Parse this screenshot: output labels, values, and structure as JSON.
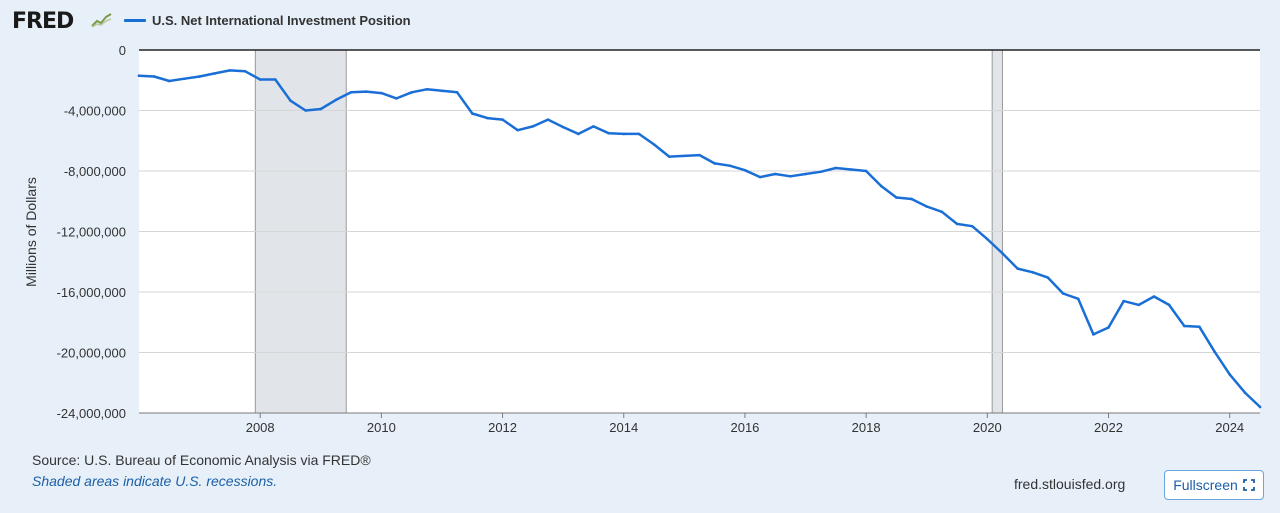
{
  "header": {
    "logo_text": "FRED",
    "logo_icon": "trend-graph-icon"
  },
  "colors": {
    "line": "#1a6fd6",
    "recession_shade": "#e1e5ea",
    "grid": "#d6d6d6",
    "background": "#e7f0f9",
    "link": "#1b5fa8"
  },
  "chart_data": {
    "type": "line",
    "title": "U.S. Net International Investment Position",
    "ylabel": "Millions of Dollars",
    "xlabel": "",
    "xlim": [
      2006.0,
      2024.5
    ],
    "ylim": [
      -24000000,
      0
    ],
    "yticks": [
      0,
      -4000000,
      -8000000,
      -12000000,
      -16000000,
      -20000000,
      -24000000
    ],
    "ytick_labels": [
      "0",
      "-4,000,000",
      "-8,000,000",
      "-12,000,000",
      "-16,000,000",
      "-20,000,000",
      "-24,000,000"
    ],
    "xticks": [
      2008,
      2010,
      2012,
      2014,
      2016,
      2018,
      2020,
      2022,
      2024
    ],
    "xtick_labels": [
      "2008",
      "2010",
      "2012",
      "2014",
      "2016",
      "2018",
      "2020",
      "2022",
      "2024"
    ],
    "legend": "top-left",
    "recessions": [
      [
        2007.92,
        2009.42
      ],
      [
        2020.08,
        2020.25
      ]
    ],
    "series": [
      {
        "name": "U.S. Net International Investment Position",
        "x": [
          2006.0,
          2006.25,
          2006.5,
          2006.75,
          2007.0,
          2007.25,
          2007.5,
          2007.75,
          2008.0,
          2008.25,
          2008.5,
          2008.75,
          2009.0,
          2009.25,
          2009.5,
          2009.75,
          2010.0,
          2010.25,
          2010.5,
          2010.75,
          2011.0,
          2011.25,
          2011.5,
          2011.75,
          2012.0,
          2012.25,
          2012.5,
          2012.75,
          2013.0,
          2013.25,
          2013.5,
          2013.75,
          2014.0,
          2014.25,
          2014.5,
          2014.75,
          2015.0,
          2015.25,
          2015.5,
          2015.75,
          2016.0,
          2016.25,
          2016.5,
          2016.75,
          2017.0,
          2017.25,
          2017.5,
          2017.75,
          2018.0,
          2018.25,
          2018.5,
          2018.75,
          2019.0,
          2019.25,
          2019.5,
          2019.75,
          2020.0,
          2020.25,
          2020.5,
          2020.75,
          2021.0,
          2021.25,
          2021.5,
          2021.75,
          2022.0,
          2022.25,
          2022.5,
          2022.75,
          2023.0,
          2023.25,
          2023.5,
          2023.75,
          2024.0,
          2024.25,
          2024.5
        ],
        "values": [
          -1700000,
          -1750000,
          -2050000,
          -1900000,
          -1750000,
          -1550000,
          -1350000,
          -1400000,
          -1950000,
          -1950000,
          -3350000,
          -4000000,
          -3900000,
          -3300000,
          -2800000,
          -2750000,
          -2850000,
          -3200000,
          -2800000,
          -2600000,
          -2700000,
          -2800000,
          -4200000,
          -4500000,
          -4600000,
          -5300000,
          -5050000,
          -4600000,
          -5100000,
          -5550000,
          -5050000,
          -5500000,
          -5550000,
          -5550000,
          -6250000,
          -7050000,
          -7000000,
          -6950000,
          -7500000,
          -7650000,
          -7950000,
          -8400000,
          -8200000,
          -8350000,
          -8200000,
          -8050000,
          -7800000,
          -7900000,
          -8000000,
          -9000000,
          -9750000,
          -9850000,
          -10350000,
          -10700000,
          -11500000,
          -11650000,
          -12500000,
          -13450000,
          -14450000,
          -14700000,
          -15050000,
          -16100000,
          -16450000,
          -18800000,
          -18350000,
          -16600000,
          -16850000,
          -16300000,
          -16850000,
          -18250000,
          -18300000,
          -19950000,
          -21450000,
          -22650000,
          -23600000
        ]
      }
    ]
  },
  "footer": {
    "source": "Source: U.S. Bureau of Economic Analysis via FRED®",
    "recessions_note": "Shaded areas indicate U.S. recessions.",
    "site": "fred.stlouisfed.org",
    "fullscreen_label": "Fullscreen",
    "fullscreen_icon": "expand-corners-icon"
  }
}
